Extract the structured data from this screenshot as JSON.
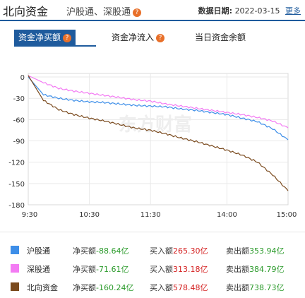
{
  "header": {
    "title": "北向资金",
    "subtitle": "沪股通、深股通",
    "date_label": "数据日期:",
    "date_value": "2022-03-15",
    "more_label": "更多"
  },
  "tabs": [
    {
      "label": "资金净买额",
      "active": true,
      "help": true
    },
    {
      "label": "资金净流入",
      "active": false,
      "help": true
    },
    {
      "label": "当日资金余额",
      "active": false,
      "help": false
    }
  ],
  "watermark": "东方财富",
  "chart_data": {
    "type": "line",
    "x": [
      "9:30",
      "9:45",
      "10:00",
      "10:15",
      "10:30",
      "10:45",
      "11:00",
      "11:15",
      "11:30",
      "13:00",
      "13:15",
      "13:30",
      "13:45",
      "14:00",
      "14:15",
      "14:30",
      "14:45",
      "15:00"
    ],
    "x_ticks": [
      "9:30",
      "10:30",
      "11:30",
      "14:00",
      "15:00"
    ],
    "y_ticks": [
      0,
      -30,
      -60,
      -90,
      -120,
      -150,
      -180
    ],
    "ylim": [
      -180,
      5
    ],
    "series": [
      {
        "name": "沪股通",
        "color": "#3d8ee8",
        "values": [
          0,
          -25,
          -30,
          -33,
          -35,
          -36,
          -38,
          -40,
          -41,
          -42,
          -45,
          -47,
          -50,
          -53,
          -58,
          -63,
          -73,
          -88.64
        ]
      },
      {
        "name": "深股通",
        "color": "#f37bf3",
        "values": [
          2,
          -8,
          -16,
          -20,
          -23,
          -26,
          -29,
          -32,
          -34,
          -38,
          -41,
          -44,
          -47,
          -50,
          -53,
          -57,
          -62,
          -71.61
        ]
      },
      {
        "name": "北向资金",
        "color": "#7a4a1e",
        "values": [
          2,
          -33,
          -46,
          -53,
          -58,
          -62,
          -67,
          -72,
          -75,
          -80,
          -86,
          -91,
          -97,
          -103,
          -110,
          -120,
          -138,
          -160.24
        ]
      }
    ]
  },
  "legend": [
    {
      "name": "沪股通",
      "color": "#3d8ee8",
      "net_label": "净买额",
      "net_value": "-88.64亿",
      "buy_label": "买入额",
      "buy_value": "265.30亿",
      "sell_label": "卖出额",
      "sell_value": "353.94亿"
    },
    {
      "name": "深股通",
      "color": "#f37bf3",
      "net_label": "净买额",
      "net_value": "-71.61亿",
      "buy_label": "买入额",
      "buy_value": "313.18亿",
      "sell_label": "卖出额",
      "sell_value": "384.79亿"
    },
    {
      "name": "北向资金",
      "color": "#7a4a1e",
      "net_label": "净买额",
      "net_value": "-160.24亿",
      "buy_label": "买入额",
      "buy_value": "578.48亿",
      "sell_label": "卖出额",
      "sell_value": "738.73亿"
    }
  ]
}
